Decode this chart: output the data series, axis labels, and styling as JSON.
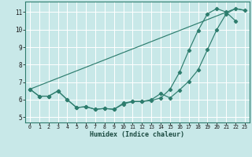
{
  "xlabel": "Humidex (Indice chaleur)",
  "xlim": [
    -0.5,
    23.5
  ],
  "ylim": [
    4.7,
    11.6
  ],
  "yticks": [
    5,
    6,
    7,
    8,
    9,
    10,
    11
  ],
  "xticks": [
    0,
    1,
    2,
    3,
    4,
    5,
    6,
    7,
    8,
    9,
    10,
    11,
    12,
    13,
    14,
    15,
    16,
    17,
    18,
    19,
    20,
    21,
    22,
    23
  ],
  "bg_color": "#c8e8e8",
  "grid_color": "#ffffff",
  "line_color": "#2e7d6e",
  "line1_x": [
    0,
    1,
    2,
    3,
    4,
    5,
    6,
    7,
    8,
    9,
    10,
    11,
    12,
    13,
    14,
    15,
    16,
    17,
    18,
    19,
    20,
    21,
    22,
    23
  ],
  "line1_y": [
    6.6,
    6.2,
    6.2,
    6.5,
    6.0,
    5.55,
    5.6,
    5.45,
    5.5,
    5.45,
    5.8,
    5.9,
    5.9,
    6.0,
    6.35,
    6.1,
    6.55,
    7.05,
    7.7,
    8.85,
    10.0,
    10.9,
    11.2,
    11.1
  ],
  "line2_x": [
    0,
    1,
    2,
    3,
    4,
    5,
    6,
    7,
    8,
    9,
    10,
    11,
    12,
    13,
    14,
    15,
    16,
    17,
    18,
    19,
    20,
    21,
    22
  ],
  "line2_y": [
    6.6,
    6.2,
    6.2,
    6.5,
    6.0,
    5.55,
    5.6,
    5.45,
    5.5,
    5.45,
    5.75,
    5.9,
    5.9,
    5.95,
    6.1,
    6.6,
    7.55,
    8.8,
    9.95,
    10.9,
    11.2,
    11.0,
    10.5
  ],
  "line3_x": [
    0,
    22,
    23
  ],
  "line3_y": [
    6.6,
    11.2,
    11.1
  ]
}
